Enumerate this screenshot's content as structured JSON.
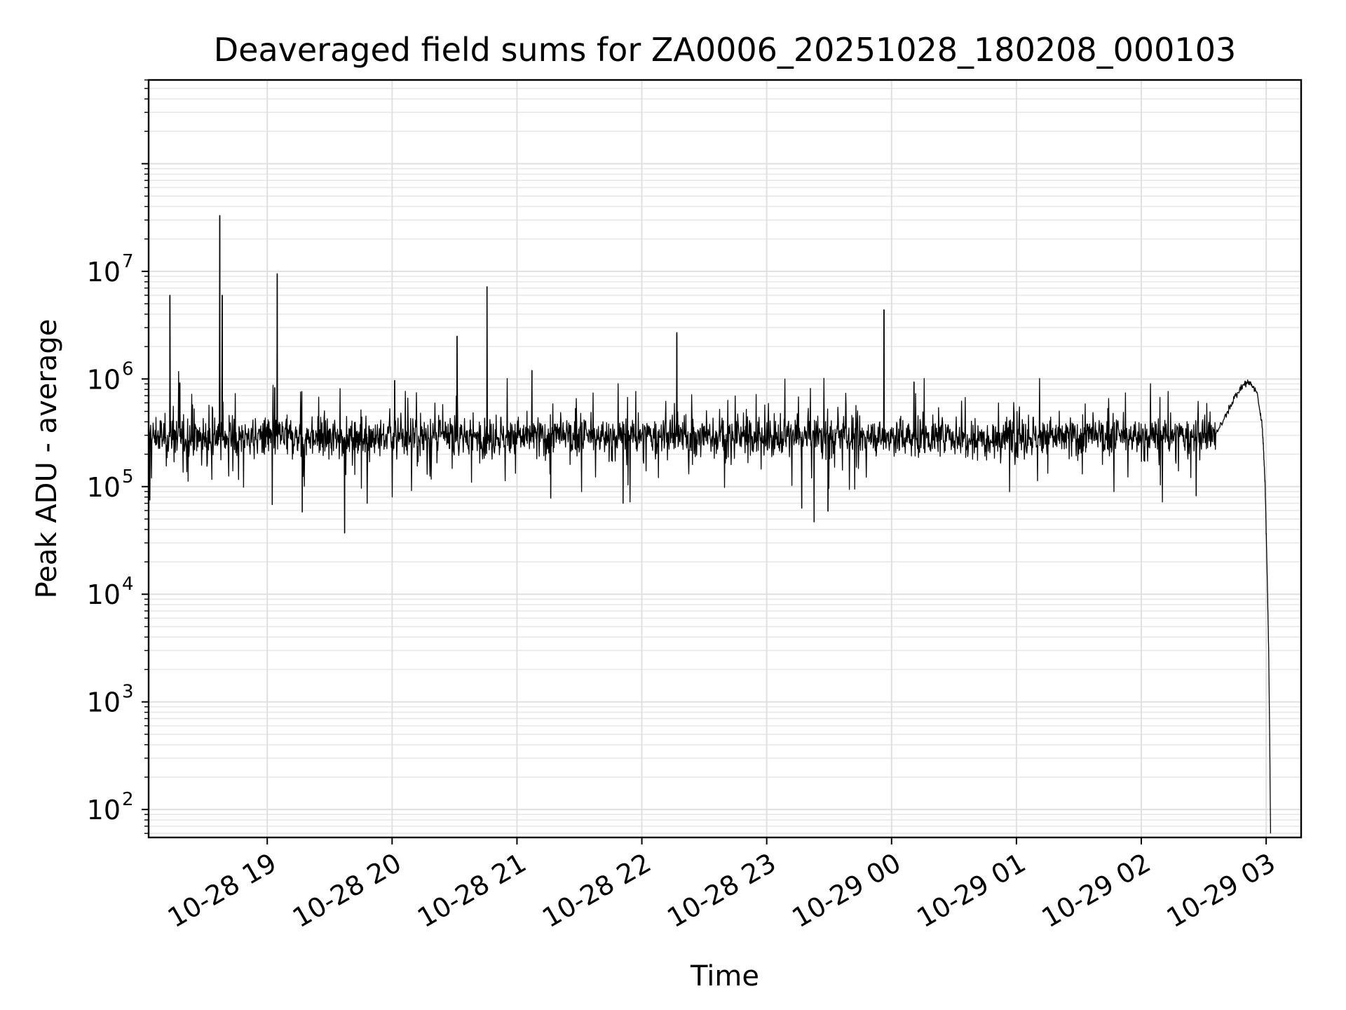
{
  "chart_data": {
    "type": "line",
    "title": "Deaveraged field sums for ZA0006_20251028_180208_000103",
    "xlabel": "Time",
    "ylabel": "Peak ADU - average",
    "yscale": "log",
    "ylim": [
      55,
      600000000
    ],
    "xlim_hours": [
      18.05,
      27.28
    ],
    "grid": true,
    "x_tick_labels": [
      "10-28 19",
      "10-28 20",
      "10-28 21",
      "10-28 22",
      "10-28 23",
      "10-29 00",
      "10-29 01",
      "10-29 02",
      "10-29 03"
    ],
    "x_tick_hours": [
      19,
      20,
      21,
      22,
      23,
      24,
      25,
      26,
      27
    ],
    "y_ticks": [
      {
        "value": 100,
        "base": "10",
        "exp": "2"
      },
      {
        "value": 1000,
        "base": "10",
        "exp": "3"
      },
      {
        "value": 10000,
        "base": "10",
        "exp": "4"
      },
      {
        "value": 100000,
        "base": "10",
        "exp": "5"
      },
      {
        "value": 1000000,
        "base": "10",
        "exp": "6"
      },
      {
        "value": 10000000,
        "base": "10",
        "exp": "7"
      }
    ],
    "series": [
      {
        "name": "field sums",
        "color": "#000000",
        "baseline_value": 290000,
        "noise_range_hours": [
          18.05,
          26.6
        ],
        "spikes": [
          {
            "x": 18.22,
            "y": 6000000
          },
          {
            "x": 18.3,
            "y": 920000
          },
          {
            "x": 18.62,
            "y": 33000000
          },
          {
            "x": 18.64,
            "y": 6000000
          },
          {
            "x": 19.08,
            "y": 9500000
          },
          {
            "x": 19.06,
            "y": 830000
          },
          {
            "x": 20.02,
            "y": 970000
          },
          {
            "x": 20.52,
            "y": 2500000
          },
          {
            "x": 20.76,
            "y": 7200000
          },
          {
            "x": 21.12,
            "y": 1200000
          },
          {
            "x": 22.28,
            "y": 2700000
          },
          {
            "x": 23.94,
            "y": 4400000
          },
          {
            "x": 24.18,
            "y": 940000
          }
        ],
        "dips": [
          {
            "x": 18.06,
            "y": 75000
          },
          {
            "x": 19.04,
            "y": 68000
          },
          {
            "x": 19.28,
            "y": 58000
          },
          {
            "x": 19.62,
            "y": 37000
          },
          {
            "x": 19.8,
            "y": 70000
          },
          {
            "x": 21.27,
            "y": 78000
          },
          {
            "x": 21.85,
            "y": 70000
          },
          {
            "x": 23.28,
            "y": 63000
          },
          {
            "x": 23.38,
            "y": 47000
          },
          {
            "x": 23.49,
            "y": 59000
          },
          {
            "x": 26.44,
            "y": 82000
          }
        ],
        "tail": [
          {
            "x": 26.6,
            "y": 300000
          },
          {
            "x": 26.68,
            "y": 480000
          },
          {
            "x": 26.74,
            "y": 650000
          },
          {
            "x": 26.8,
            "y": 830000
          },
          {
            "x": 26.84,
            "y": 930000
          },
          {
            "x": 26.88,
            "y": 900000
          },
          {
            "x": 26.93,
            "y": 720000
          },
          {
            "x": 26.97,
            "y": 350000
          },
          {
            "x": 26.99,
            "y": 120000
          },
          {
            "x": 27.0,
            "y": 40000
          },
          {
            "x": 27.01,
            "y": 12000
          },
          {
            "x": 27.02,
            "y": 3000
          },
          {
            "x": 27.028,
            "y": 500
          },
          {
            "x": 27.035,
            "y": 60
          }
        ]
      }
    ]
  }
}
